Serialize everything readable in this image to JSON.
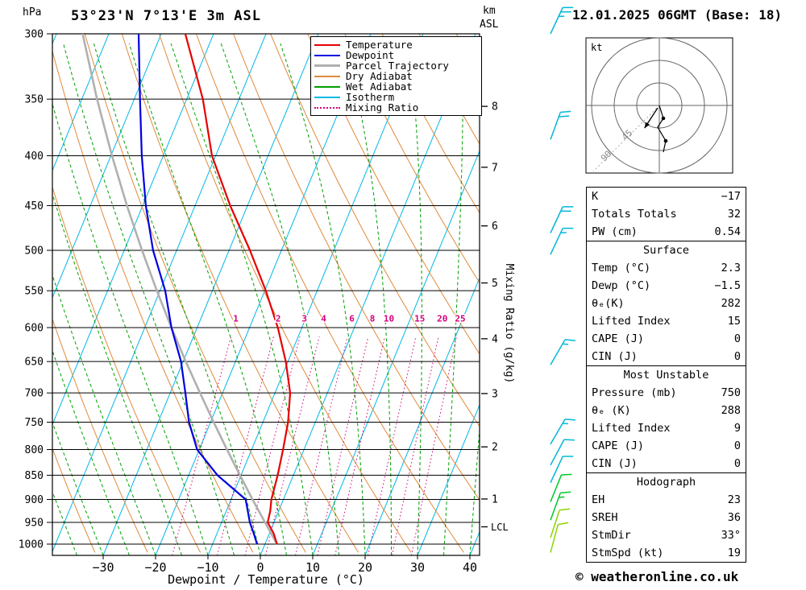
{
  "header": {
    "title": "53°23'N 7°13'E 3m ASL",
    "date": "12.01.2025 06GMT (Base: 18)"
  },
  "footer": {
    "copyright": "© weatheronline.co.uk"
  },
  "axes": {
    "pressure_unit": "hPa",
    "pressure_ticks": [
      300,
      350,
      400,
      450,
      500,
      550,
      600,
      650,
      700,
      750,
      800,
      850,
      900,
      950,
      1000
    ],
    "temp_ticks": [
      -30,
      -20,
      -10,
      0,
      10,
      20,
      30,
      40
    ],
    "temp_tick_labels": [
      "−30",
      "−20",
      "−10",
      "0",
      "10",
      "20",
      "30",
      "40"
    ],
    "xlabel": "Dewpoint / Temperature (°C)",
    "right_label": "Mixing Ratio (g/kg)",
    "km_unit": "km",
    "asl": "ASL",
    "km_ticks": [
      {
        "km": 8,
        "p": 356
      },
      {
        "km": 7,
        "p": 411
      },
      {
        "km": 6,
        "p": 472
      },
      {
        "km": 5,
        "p": 540
      },
      {
        "km": 4,
        "p": 616
      },
      {
        "km": 3,
        "p": 701
      },
      {
        "km": 2,
        "p": 795
      },
      {
        "km": 1,
        "p": 899
      }
    ],
    "lcl": {
      "label": "LCL",
      "p": 960
    }
  },
  "legend": {
    "items": [
      {
        "label": "Temperature",
        "color_key": "temperature",
        "dash": "solid"
      },
      {
        "label": "Dewpoint",
        "color_key": "dewpoint",
        "dash": "solid"
      },
      {
        "label": "Parcel Trajectory",
        "color_key": "parcel",
        "dash": "solid"
      },
      {
        "label": "Dry Adiabat",
        "color_key": "dry_adiabat",
        "dash": "solid"
      },
      {
        "label": "Wet Adiabat",
        "color_key": "wet_adiabat",
        "dash": "solid"
      },
      {
        "label": "Isotherm",
        "color_key": "isotherm",
        "dash": "solid"
      },
      {
        "label": "Mixing Ratio",
        "color_key": "mixing_ratio",
        "dash": "dotted"
      }
    ]
  },
  "chart_data": {
    "type": "skewt-logp",
    "pressure_range": [
      300,
      1027
    ],
    "temp_axis_range_at_surface": [
      -40,
      42
    ],
    "temperature": {
      "name": "Temperature (°C)",
      "points": [
        [
          1000,
          2.3
        ],
        [
          975,
          0.8
        ],
        [
          950,
          -1.2
        ],
        [
          925,
          -1.6
        ],
        [
          900,
          -2.3
        ],
        [
          850,
          -3.0
        ],
        [
          800,
          -4.0
        ],
        [
          750,
          -5.2
        ],
        [
          700,
          -7.1
        ],
        [
          650,
          -10.4
        ],
        [
          600,
          -14.6
        ],
        [
          550,
          -19.8
        ],
        [
          500,
          -26.0
        ],
        [
          450,
          -33.3
        ],
        [
          400,
          -40.7
        ],
        [
          350,
          -46.9
        ],
        [
          300,
          -55.4
        ]
      ]
    },
    "dewpoint": {
      "name": "Dewpoint (°C)",
      "points": [
        [
          1000,
          -1.5
        ],
        [
          975,
          -3.0
        ],
        [
          950,
          -4.6
        ],
        [
          900,
          -7.2
        ],
        [
          850,
          -14.5
        ],
        [
          800,
          -20.4
        ],
        [
          750,
          -24.1
        ],
        [
          700,
          -27.1
        ],
        [
          650,
          -30.4
        ],
        [
          600,
          -34.9
        ],
        [
          550,
          -39.0
        ],
        [
          500,
          -44.5
        ],
        [
          450,
          -49.4
        ],
        [
          400,
          -54.1
        ],
        [
          350,
          -58.9
        ],
        [
          300,
          -64.3
        ]
      ]
    },
    "parcel": {
      "name": "Parcel Trajectory (°C)",
      "points": [
        [
          1000,
          2.3
        ],
        [
          950,
          -1.7
        ],
        [
          900,
          -5.9
        ],
        [
          850,
          -10.2
        ],
        [
          800,
          -14.7
        ],
        [
          750,
          -19.4
        ],
        [
          700,
          -24.3
        ],
        [
          650,
          -29.5
        ],
        [
          600,
          -34.9
        ],
        [
          550,
          -40.6
        ],
        [
          500,
          -46.6
        ],
        [
          450,
          -53.0
        ],
        [
          400,
          -59.8
        ],
        [
          350,
          -67.1
        ],
        [
          300,
          -75.0
        ]
      ]
    },
    "mixing_ratio_lines": [
      1,
      2,
      3,
      4,
      6,
      8,
      10,
      15,
      20,
      25
    ],
    "mixing_ratio_label_pressure": 588,
    "isotherm_step_C": 10,
    "dry_adiabat_theta_K": {
      "min": 240,
      "max": 440,
      "step": 10
    },
    "wet_adiabat_start_C": {
      "min": -60,
      "max": 40,
      "step": 5
    }
  },
  "wind_barbs": [
    {
      "p": 300,
      "speed": 25,
      "dir": 25,
      "level": "upper"
    },
    {
      "p": 385,
      "speed": 20,
      "dir": 20,
      "level": "upper"
    },
    {
      "p": 480,
      "speed": 20,
      "dir": 25,
      "level": "upper"
    },
    {
      "p": 505,
      "speed": 15,
      "dir": 25,
      "level": "upper"
    },
    {
      "p": 655,
      "speed": 15,
      "dir": 30,
      "level": "upper"
    },
    {
      "p": 790,
      "speed": 15,
      "dir": 30,
      "level": "upper"
    },
    {
      "p": 830,
      "speed": 10,
      "dir": 28,
      "level": "upper"
    },
    {
      "p": 865,
      "speed": 10,
      "dir": 25,
      "level": "upper"
    },
    {
      "p": 905,
      "speed": 10,
      "dir": 22,
      "level": "low"
    },
    {
      "p": 945,
      "speed": 15,
      "dir": 20,
      "level": "low"
    },
    {
      "p": 985,
      "speed": 10,
      "dir": 18,
      "level": "sfc"
    },
    {
      "p": 1020,
      "speed": 10,
      "dir": 15,
      "level": "sfc"
    }
  ],
  "hodograph": {
    "unit_label": "kt",
    "ring_labels": [
      "45",
      "90"
    ],
    "storm_dir_deg": 33,
    "storm_speed_kt": 19
  },
  "table": {
    "sections": [
      {
        "header": null,
        "rows": [
          {
            "label": "K",
            "value": "−17"
          },
          {
            "label": "Totals Totals",
            "value": "32"
          },
          {
            "label": "PW (cm)",
            "value": "0.54"
          }
        ]
      },
      {
        "header": "Surface",
        "rows": [
          {
            "label": "Temp (°C)",
            "value": "2.3"
          },
          {
            "label": "Dewp (°C)",
            "value": "−1.5"
          },
          {
            "label": "θₑ(K)",
            "value": "282"
          },
          {
            "label": "Lifted Index",
            "value": "15"
          },
          {
            "label": "CAPE (J)",
            "value": "0"
          },
          {
            "label": "CIN (J)",
            "value": "0"
          }
        ]
      },
      {
        "header": "Most Unstable",
        "rows": [
          {
            "label": "Pressure (mb)",
            "value": "750"
          },
          {
            "label": "θₑ (K)",
            "value": "288"
          },
          {
            "label": "Lifted Index",
            "value": "9"
          },
          {
            "label": "CAPE (J)",
            "value": "0"
          },
          {
            "label": "CIN (J)",
            "value": "0"
          }
        ]
      },
      {
        "header": "Hodograph",
        "rows": [
          {
            "label": "EH",
            "value": "23"
          },
          {
            "label": "SREH",
            "value": "36"
          },
          {
            "label": "StmDir",
            "value": "33°"
          },
          {
            "label": "StmSpd (kt)",
            "value": "19"
          }
        ]
      }
    ]
  },
  "colors": {
    "temperature": "#e60000",
    "dewpoint": "#0000e0",
    "parcel": "#b0b0b0",
    "dry_adiabat": "#e08a3c",
    "wet_adiabat": "#00a000",
    "isotherm": "#00b8e8",
    "mixing_ratio": "#d4007c",
    "grid": "#000000",
    "barb_upper": "#00b8d8",
    "barb_low": "#00c828",
    "barb_sfc": "#8cd400"
  }
}
